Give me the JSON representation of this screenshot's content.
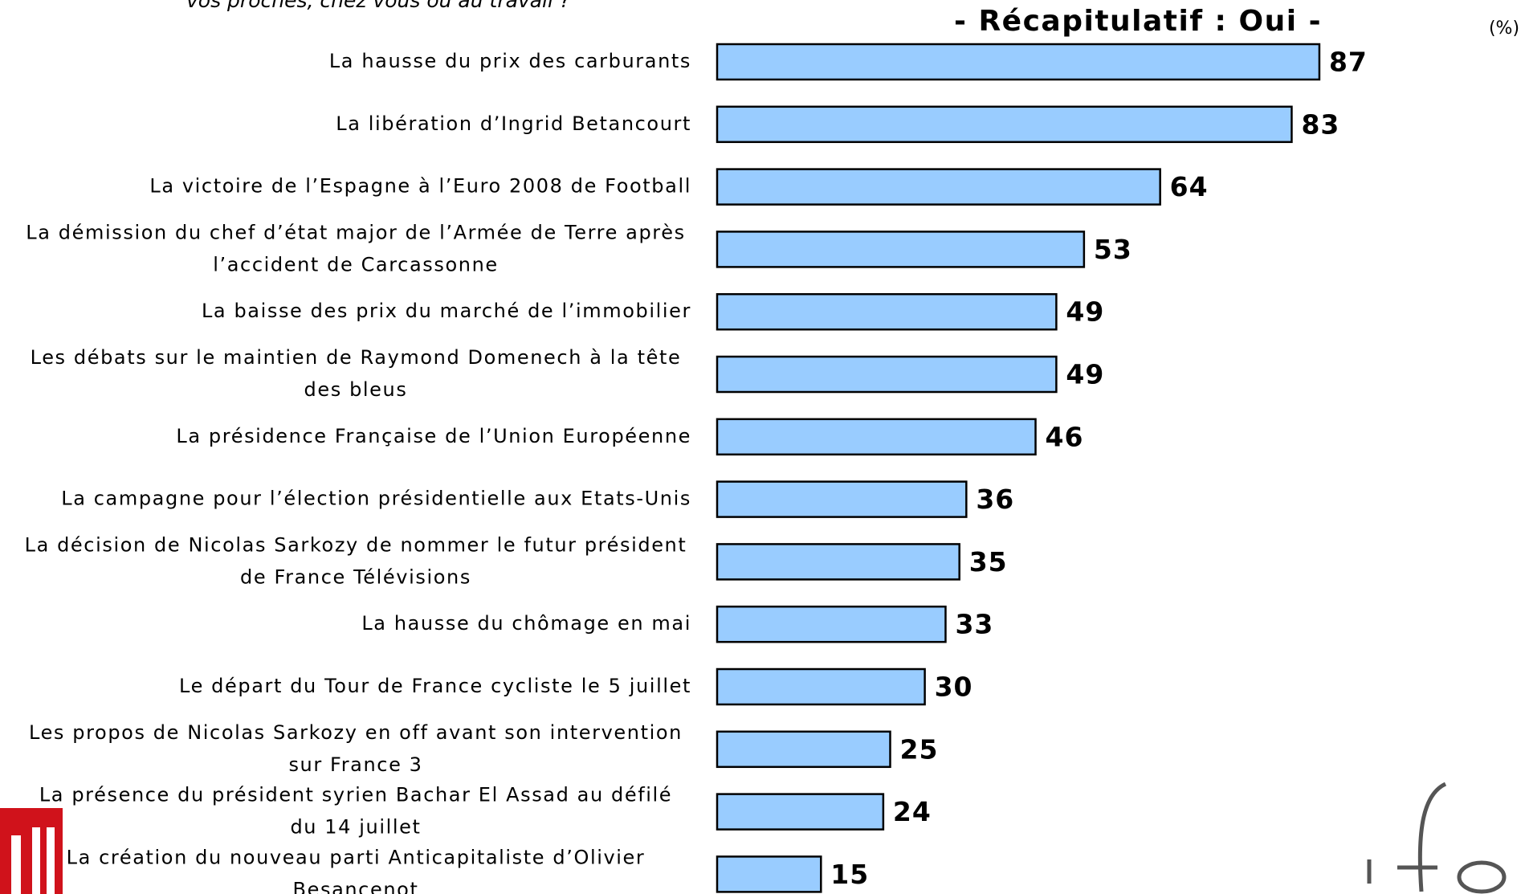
{
  "chart_data": {
    "type": "bar",
    "orientation": "horizontal",
    "subtitle": "vos proches, chez vous ou au travail ?",
    "title": "- Récapitulatif : Oui -",
    "unit": "(%)",
    "color": "#99ccff",
    "categories": [
      [
        "La hausse du prix des carburants"
      ],
      [
        "La libération d’Ingrid Betancourt"
      ],
      [
        "La victoire de l’Espagne à l’Euro 2008 de Football"
      ],
      [
        "La démission du chef d’état major de l’Armée de Terre après",
        "l’accident de Carcassonne"
      ],
      [
        "La baisse des prix du marché de l’immobilier"
      ],
      [
        "Les débats sur le maintien de Raymond Domenech à la tête",
        "des bleus"
      ],
      [
        "La présidence Française de l’Union Européenne"
      ],
      [
        "La campagne pour l’élection présidentielle aux Etats-Unis"
      ],
      [
        "La décision de Nicolas Sarkozy de nommer le futur président",
        "de France Télévisions"
      ],
      [
        "La hausse du chômage en mai"
      ],
      [
        "Le départ du Tour de France cycliste le 5 juillet"
      ],
      [
        "Les propos de Nicolas Sarkozy en off avant son intervention",
        "sur France 3"
      ],
      [
        "La présence du président syrien Bachar El Assad au défilé",
        "du 14 juillet"
      ],
      [
        "La création du nouveau parti Anticapitaliste d’Olivier",
        "Besancenot"
      ]
    ],
    "values": [
      87,
      83,
      64,
      53,
      49,
      49,
      46,
      36,
      35,
      33,
      30,
      25,
      24,
      15
    ]
  }
}
